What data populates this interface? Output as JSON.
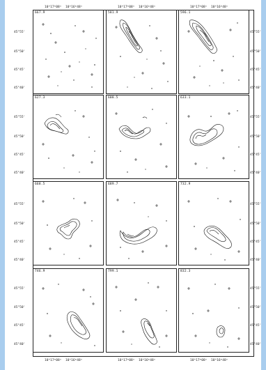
{
  "axis_labels": {
    "ra_left": "10ʰ17ᵐ08ˢ",
    "ra_right": "10ʰ16ᵐ48ˢ",
    "dec": [
      "45°55'",
      "45°50'",
      "45°45'",
      "45°40'"
    ]
  },
  "panels": [
    {
      "velocity": "667.9"
    },
    {
      "velocity": "581.9"
    },
    {
      "velocity": "596.1"
    },
    {
      "velocity": "627.3"
    },
    {
      "velocity": "608.5"
    },
    {
      "velocity": "633.1"
    },
    {
      "velocity": "668.5"
    },
    {
      "velocity": "689.7"
    },
    {
      "velocity": "732.9"
    },
    {
      "velocity": "746.9"
    },
    {
      "velocity": "799.1"
    },
    {
      "velocity": "832.3"
    }
  ]
}
